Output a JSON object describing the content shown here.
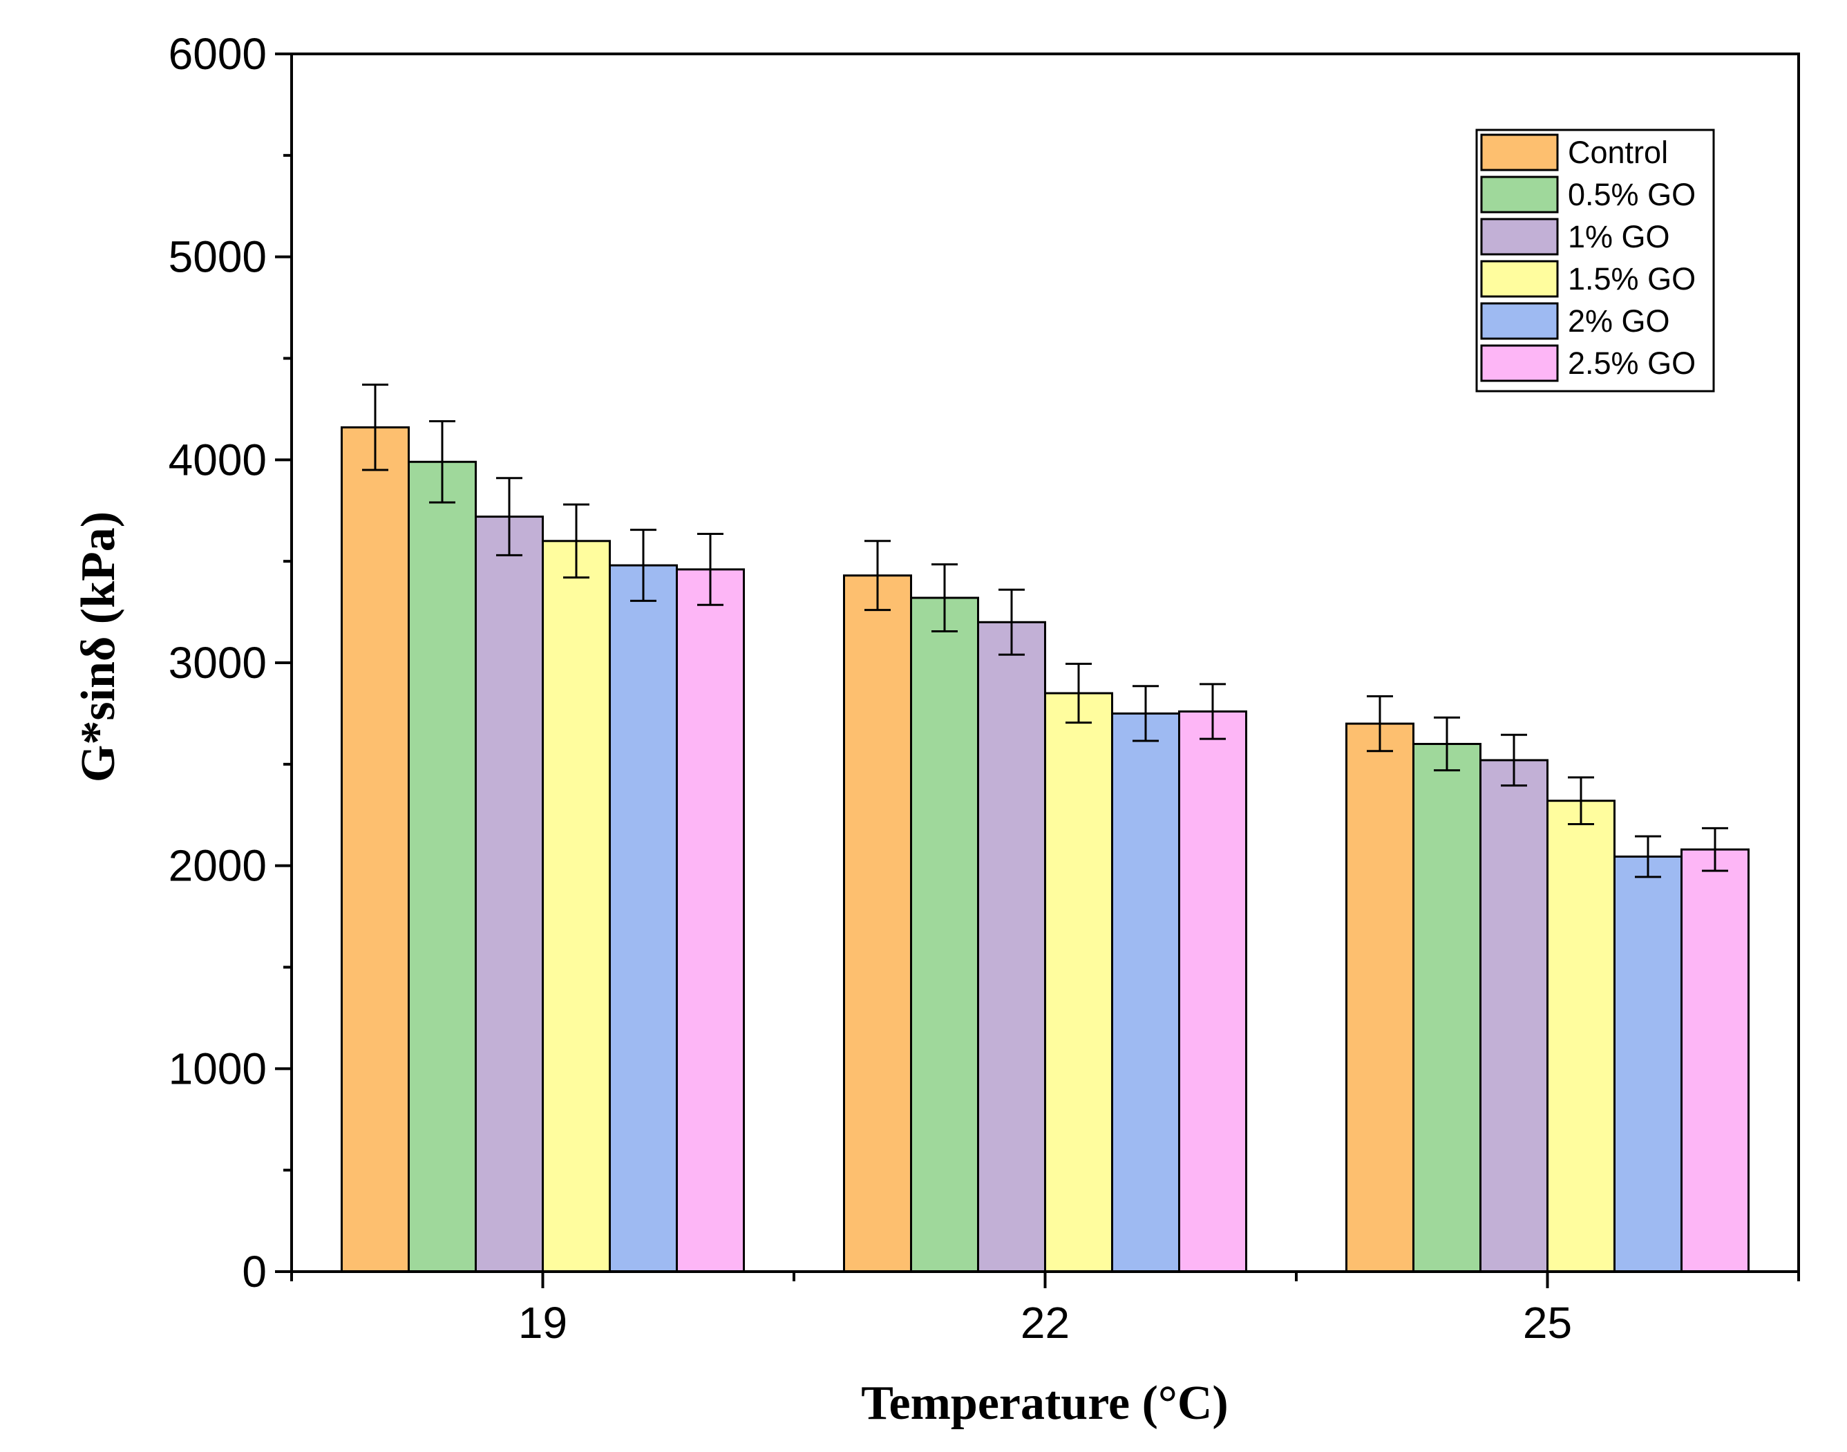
{
  "chart_data": {
    "type": "bar",
    "title": "",
    "xlabel": "Temperature (°C)",
    "ylabel": "G*sinδ (kPa)",
    "ylim": [
      0,
      6000
    ],
    "yticks": [
      0,
      1000,
      2000,
      3000,
      4000,
      5000,
      6000
    ],
    "categories": [
      "19",
      "22",
      "25"
    ],
    "legend_position": "top-right",
    "series": [
      {
        "name": "Control",
        "color": "#FDBF6F",
        "values": [
          4160,
          3430,
          2700
        ],
        "errors": [
          210,
          170,
          135
        ]
      },
      {
        "name": "0.5% GO",
        "color": "#9FD89B",
        "values": [
          3990,
          3320,
          2600
        ],
        "errors": [
          200,
          165,
          130
        ]
      },
      {
        "name": "1% GO",
        "color": "#C2B0D6",
        "values": [
          3720,
          3200,
          2520
        ],
        "errors": [
          190,
          160,
          125
        ]
      },
      {
        "name": "1.5% GO",
        "color": "#FFFD9E",
        "values": [
          3600,
          2850,
          2320
        ],
        "errors": [
          180,
          145,
          115
        ]
      },
      {
        "name": "2% GO",
        "color": "#9EBAF2",
        "values": [
          3480,
          2750,
          2045
        ],
        "errors": [
          175,
          135,
          100
        ]
      },
      {
        "name": "2.5% GO",
        "color": "#FDB6F6",
        "values": [
          3460,
          2760,
          2080
        ],
        "errors": [
          175,
          135,
          105
        ]
      }
    ]
  }
}
